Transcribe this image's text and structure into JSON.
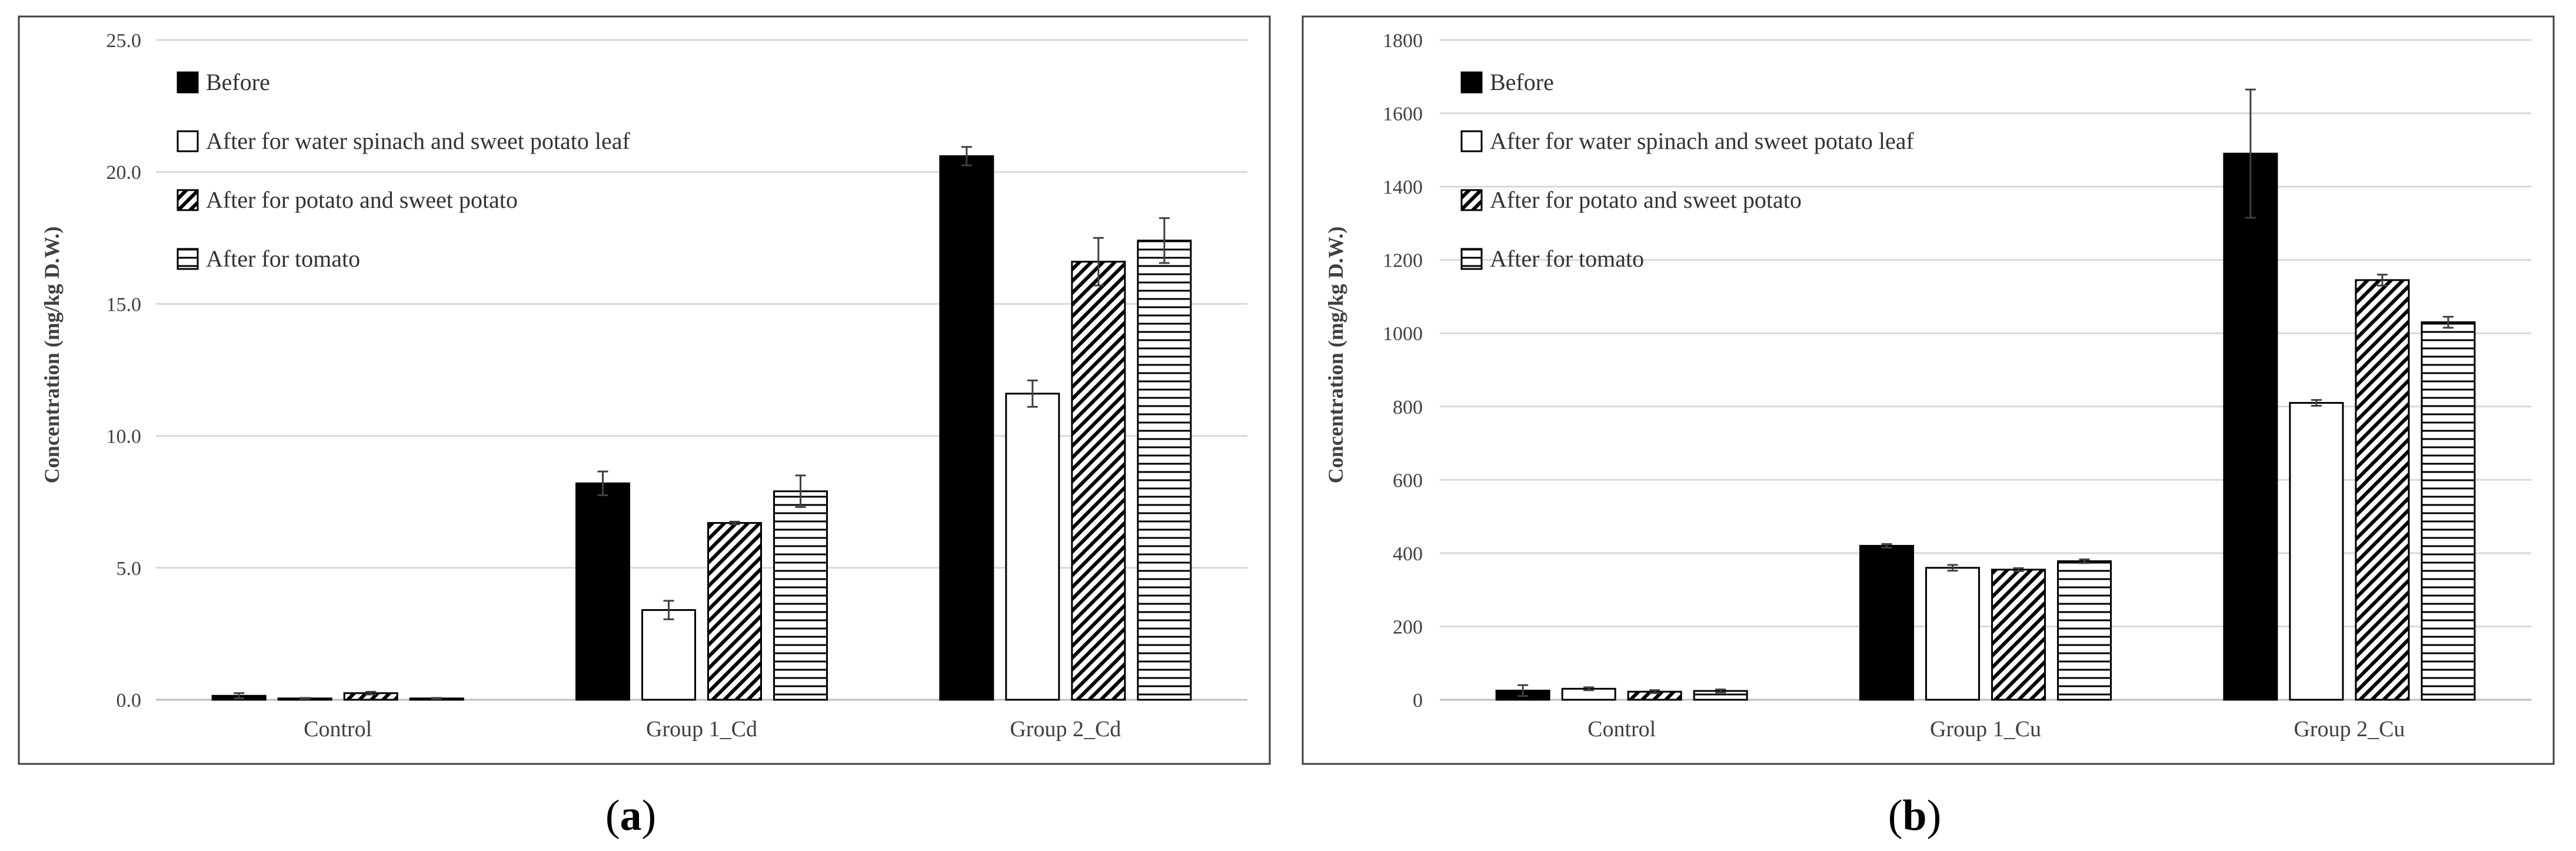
{
  "chart_data": [
    {
      "type": "bar",
      "panel_label": "(a)",
      "caption_letter": "a",
      "title": "",
      "ylabel": "Concentration (mg/kg D.W.)",
      "xlabel": "",
      "ylim": [
        0,
        25
      ],
      "yticks": [
        "0.0",
        "5.0",
        "10.0",
        "15.0",
        "20.0",
        "25.0"
      ],
      "ytick_values": [
        0,
        5,
        10,
        15,
        20,
        25
      ],
      "grid": true,
      "legend_position": "top-left",
      "categories": [
        "Control",
        "Group 1_Cd",
        "Group 2_Cd"
      ],
      "series": [
        {
          "name": "Before",
          "pattern": "solid",
          "values": [
            0.15,
            8.2,
            20.6
          ],
          "errors": [
            0.1,
            0.45,
            0.35
          ]
        },
        {
          "name": "After for water spinach and sweet potato leaf",
          "pattern": "empty",
          "values": [
            0.05,
            3.4,
            11.6
          ],
          "errors": [
            0.02,
            0.35,
            0.5
          ]
        },
        {
          "name": "After for potato and sweet potato",
          "pattern": "diagonal",
          "values": [
            0.25,
            6.7,
            16.6
          ],
          "errors": [
            0.05,
            0.05,
            0.9
          ]
        },
        {
          "name": "After for tomato",
          "pattern": "horizontal",
          "values": [
            0.05,
            7.9,
            17.4
          ],
          "errors": [
            0.02,
            0.6,
            0.85
          ]
        }
      ]
    },
    {
      "type": "bar",
      "panel_label": "(b)",
      "caption_letter": "b",
      "title": "",
      "ylabel": "Concentration (mg/kg D.W.)",
      "xlabel": "",
      "ylim": [
        0,
        1800
      ],
      "yticks": [
        "0",
        "200",
        "400",
        "600",
        "800",
        "1000",
        "1200",
        "1400",
        "1600",
        "1800"
      ],
      "ytick_values": [
        0,
        200,
        400,
        600,
        800,
        1000,
        1200,
        1400,
        1600,
        1800
      ],
      "grid": true,
      "legend_position": "top-left",
      "categories": [
        "Control",
        "Group 1_Cu",
        "Group 2_Cu"
      ],
      "series": [
        {
          "name": "Before",
          "pattern": "solid",
          "values": [
            25,
            420,
            1490
          ],
          "errors": [
            15,
            5,
            175
          ]
        },
        {
          "name": "After for water spinach and sweet potato leaf",
          "pattern": "empty",
          "values": [
            30,
            360,
            810
          ],
          "errors": [
            4,
            8,
            8
          ]
        },
        {
          "name": "After for potato and sweet potato",
          "pattern": "diagonal",
          "values": [
            22,
            355,
            1145
          ],
          "errors": [
            4,
            4,
            15
          ]
        },
        {
          "name": "After for tomato",
          "pattern": "horizontal",
          "values": [
            24,
            378,
            1030
          ],
          "errors": [
            4,
            5,
            15
          ]
        }
      ]
    }
  ]
}
